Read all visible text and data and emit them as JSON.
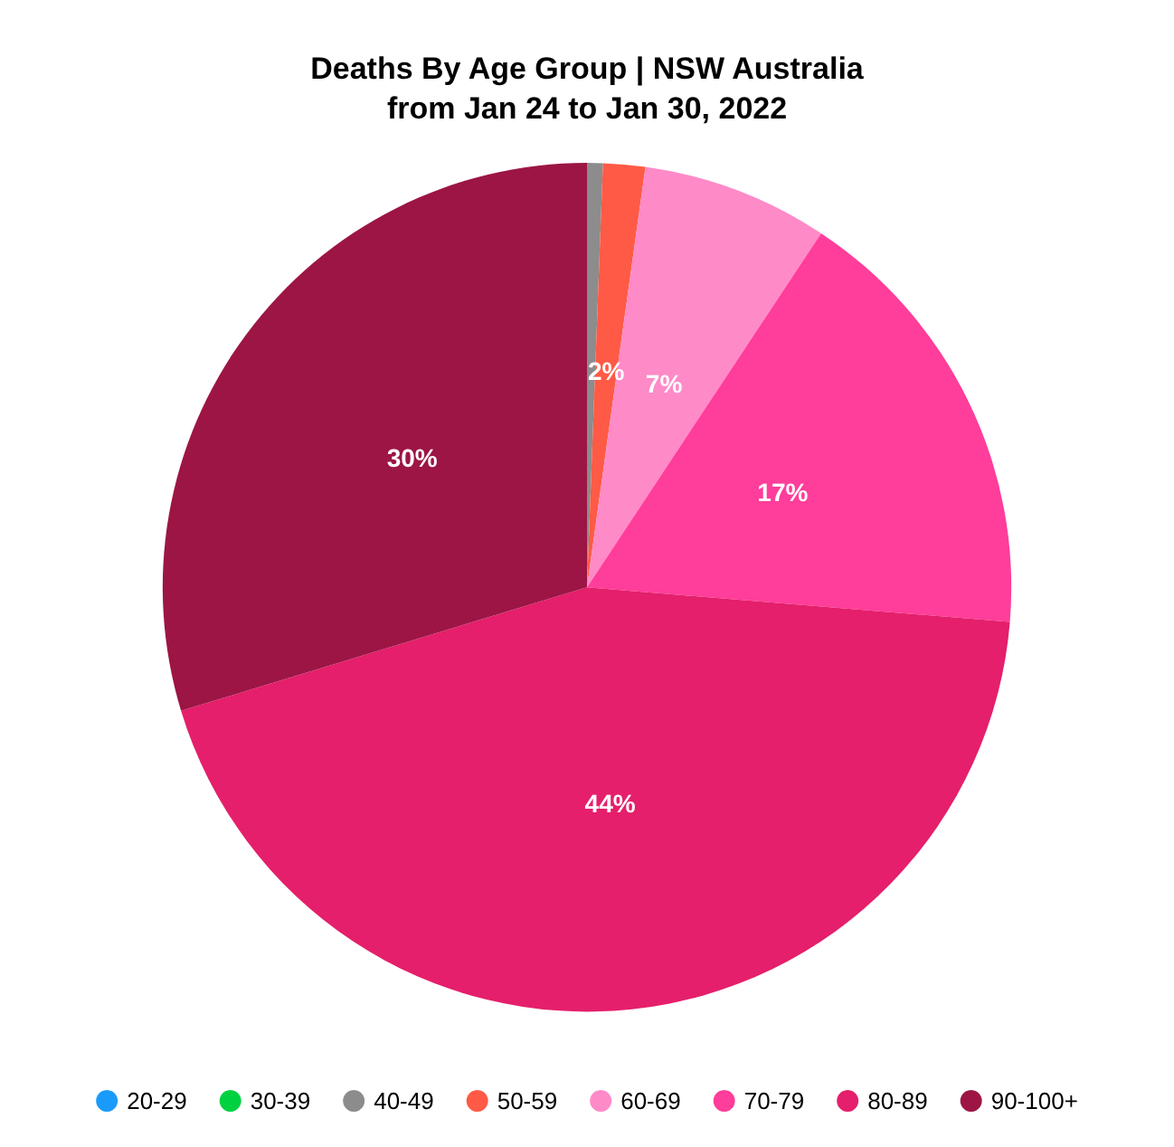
{
  "chart_data": {
    "type": "pie",
    "title": "Deaths By Age Group | NSW Australia\nfrom Jan 24 to Jan 30, 2022",
    "categories": [
      "20-29",
      "30-39",
      "40-49",
      "50-59",
      "60-69",
      "70-79",
      "80-89",
      "90-100+"
    ],
    "values": [
      0,
      0,
      0.6,
      1.6,
      7.1,
      17,
      44,
      29.7
    ],
    "colors": [
      "#1a9bfc",
      "#00d140",
      "#8c8c8c",
      "#ff5a45",
      "#ff8ac8",
      "#ff3d9a",
      "#e51f6b",
      "#9c1545"
    ],
    "value_labels": [
      null,
      null,
      null,
      "2%",
      "7%",
      "17%",
      "44%",
      "30%"
    ],
    "legend": "bottom"
  }
}
